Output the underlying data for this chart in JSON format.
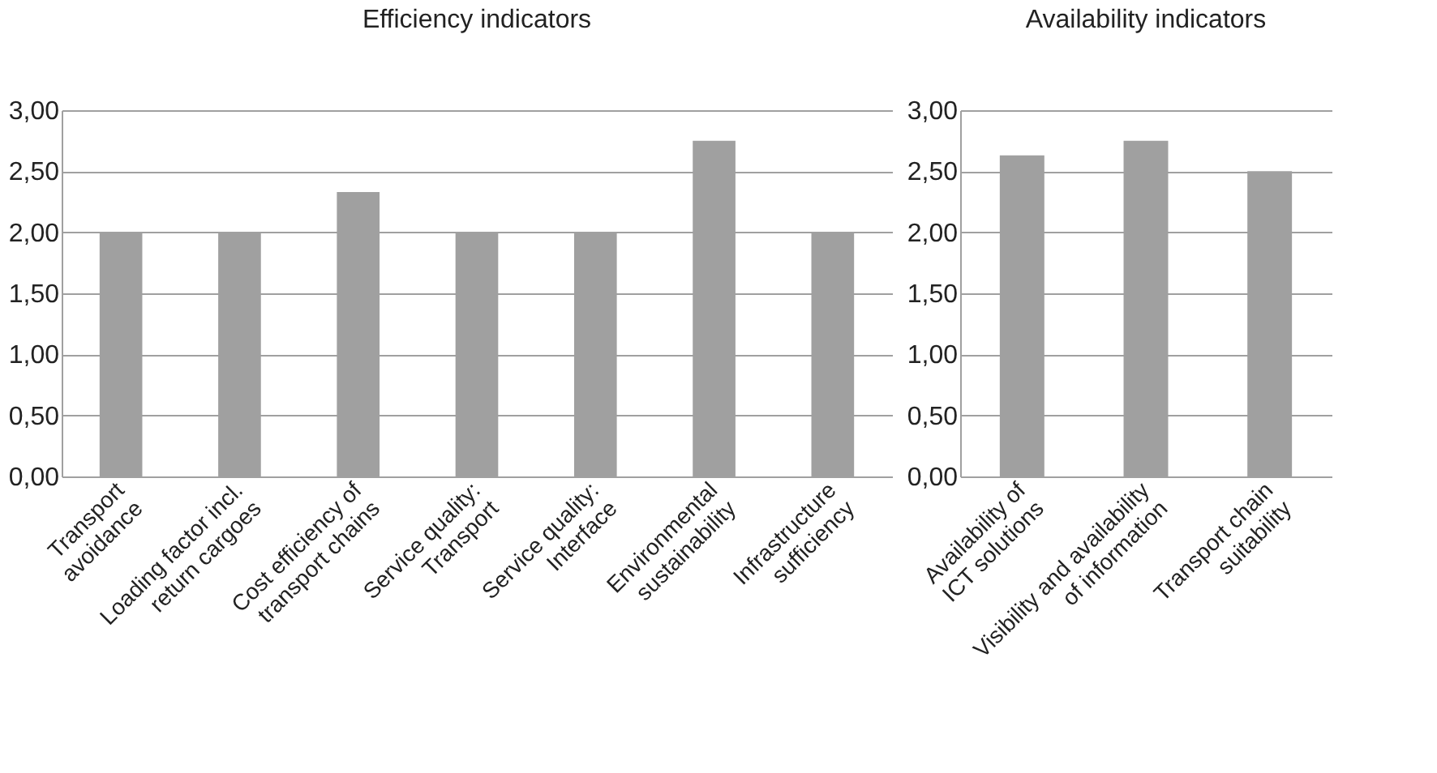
{
  "chart_data": [
    {
      "type": "bar",
      "title": "Efficiency indicators",
      "categories": [
        "Transport\navoidance",
        "Loading factor incl.\nreturn cargoes",
        "Cost efficiency of\ntransport chains",
        "Service quality:\nTransport",
        "Service quality:\nInterface",
        "Environmental\nsustainability",
        "Infrastructure\nsufficiency"
      ],
      "values": [
        2,
        2,
        2.33,
        2,
        2,
        2.75,
        2
      ],
      "color": "#a0a0a0",
      "ylim": [
        0,
        3
      ],
      "yticks": [
        {
          "value": 0,
          "label": "0,00"
        },
        {
          "value": 0.5,
          "label": "0,50"
        },
        {
          "value": 1,
          "label": "1,00"
        },
        {
          "value": 1.5,
          "label": "1,50"
        },
        {
          "value": 2,
          "label": "2,00"
        },
        {
          "value": 2.5,
          "label": "2,50"
        },
        {
          "value": 3,
          "label": "3,00"
        }
      ],
      "grid": "y"
    },
    {
      "type": "bar",
      "title": "Availability indicators",
      "categories": [
        "Availability of\nICT solutions",
        "Visibility and availability\nof information",
        "Transport chain\nsuitability"
      ],
      "values": [
        2.63,
        2.75,
        2.5
      ],
      "color": "#a0a0a0",
      "ylim": [
        0,
        3
      ],
      "yticks": [
        {
          "value": 0,
          "label": "0,00"
        },
        {
          "value": 0.5,
          "label": "0,50"
        },
        {
          "value": 1,
          "label": "1,00"
        },
        {
          "value": 1.5,
          "label": "1,50"
        },
        {
          "value": 2,
          "label": "2,00"
        },
        {
          "value": 2.5,
          "label": "2,50"
        },
        {
          "value": 3,
          "label": "3,00"
        }
      ],
      "grid": "y"
    }
  ]
}
